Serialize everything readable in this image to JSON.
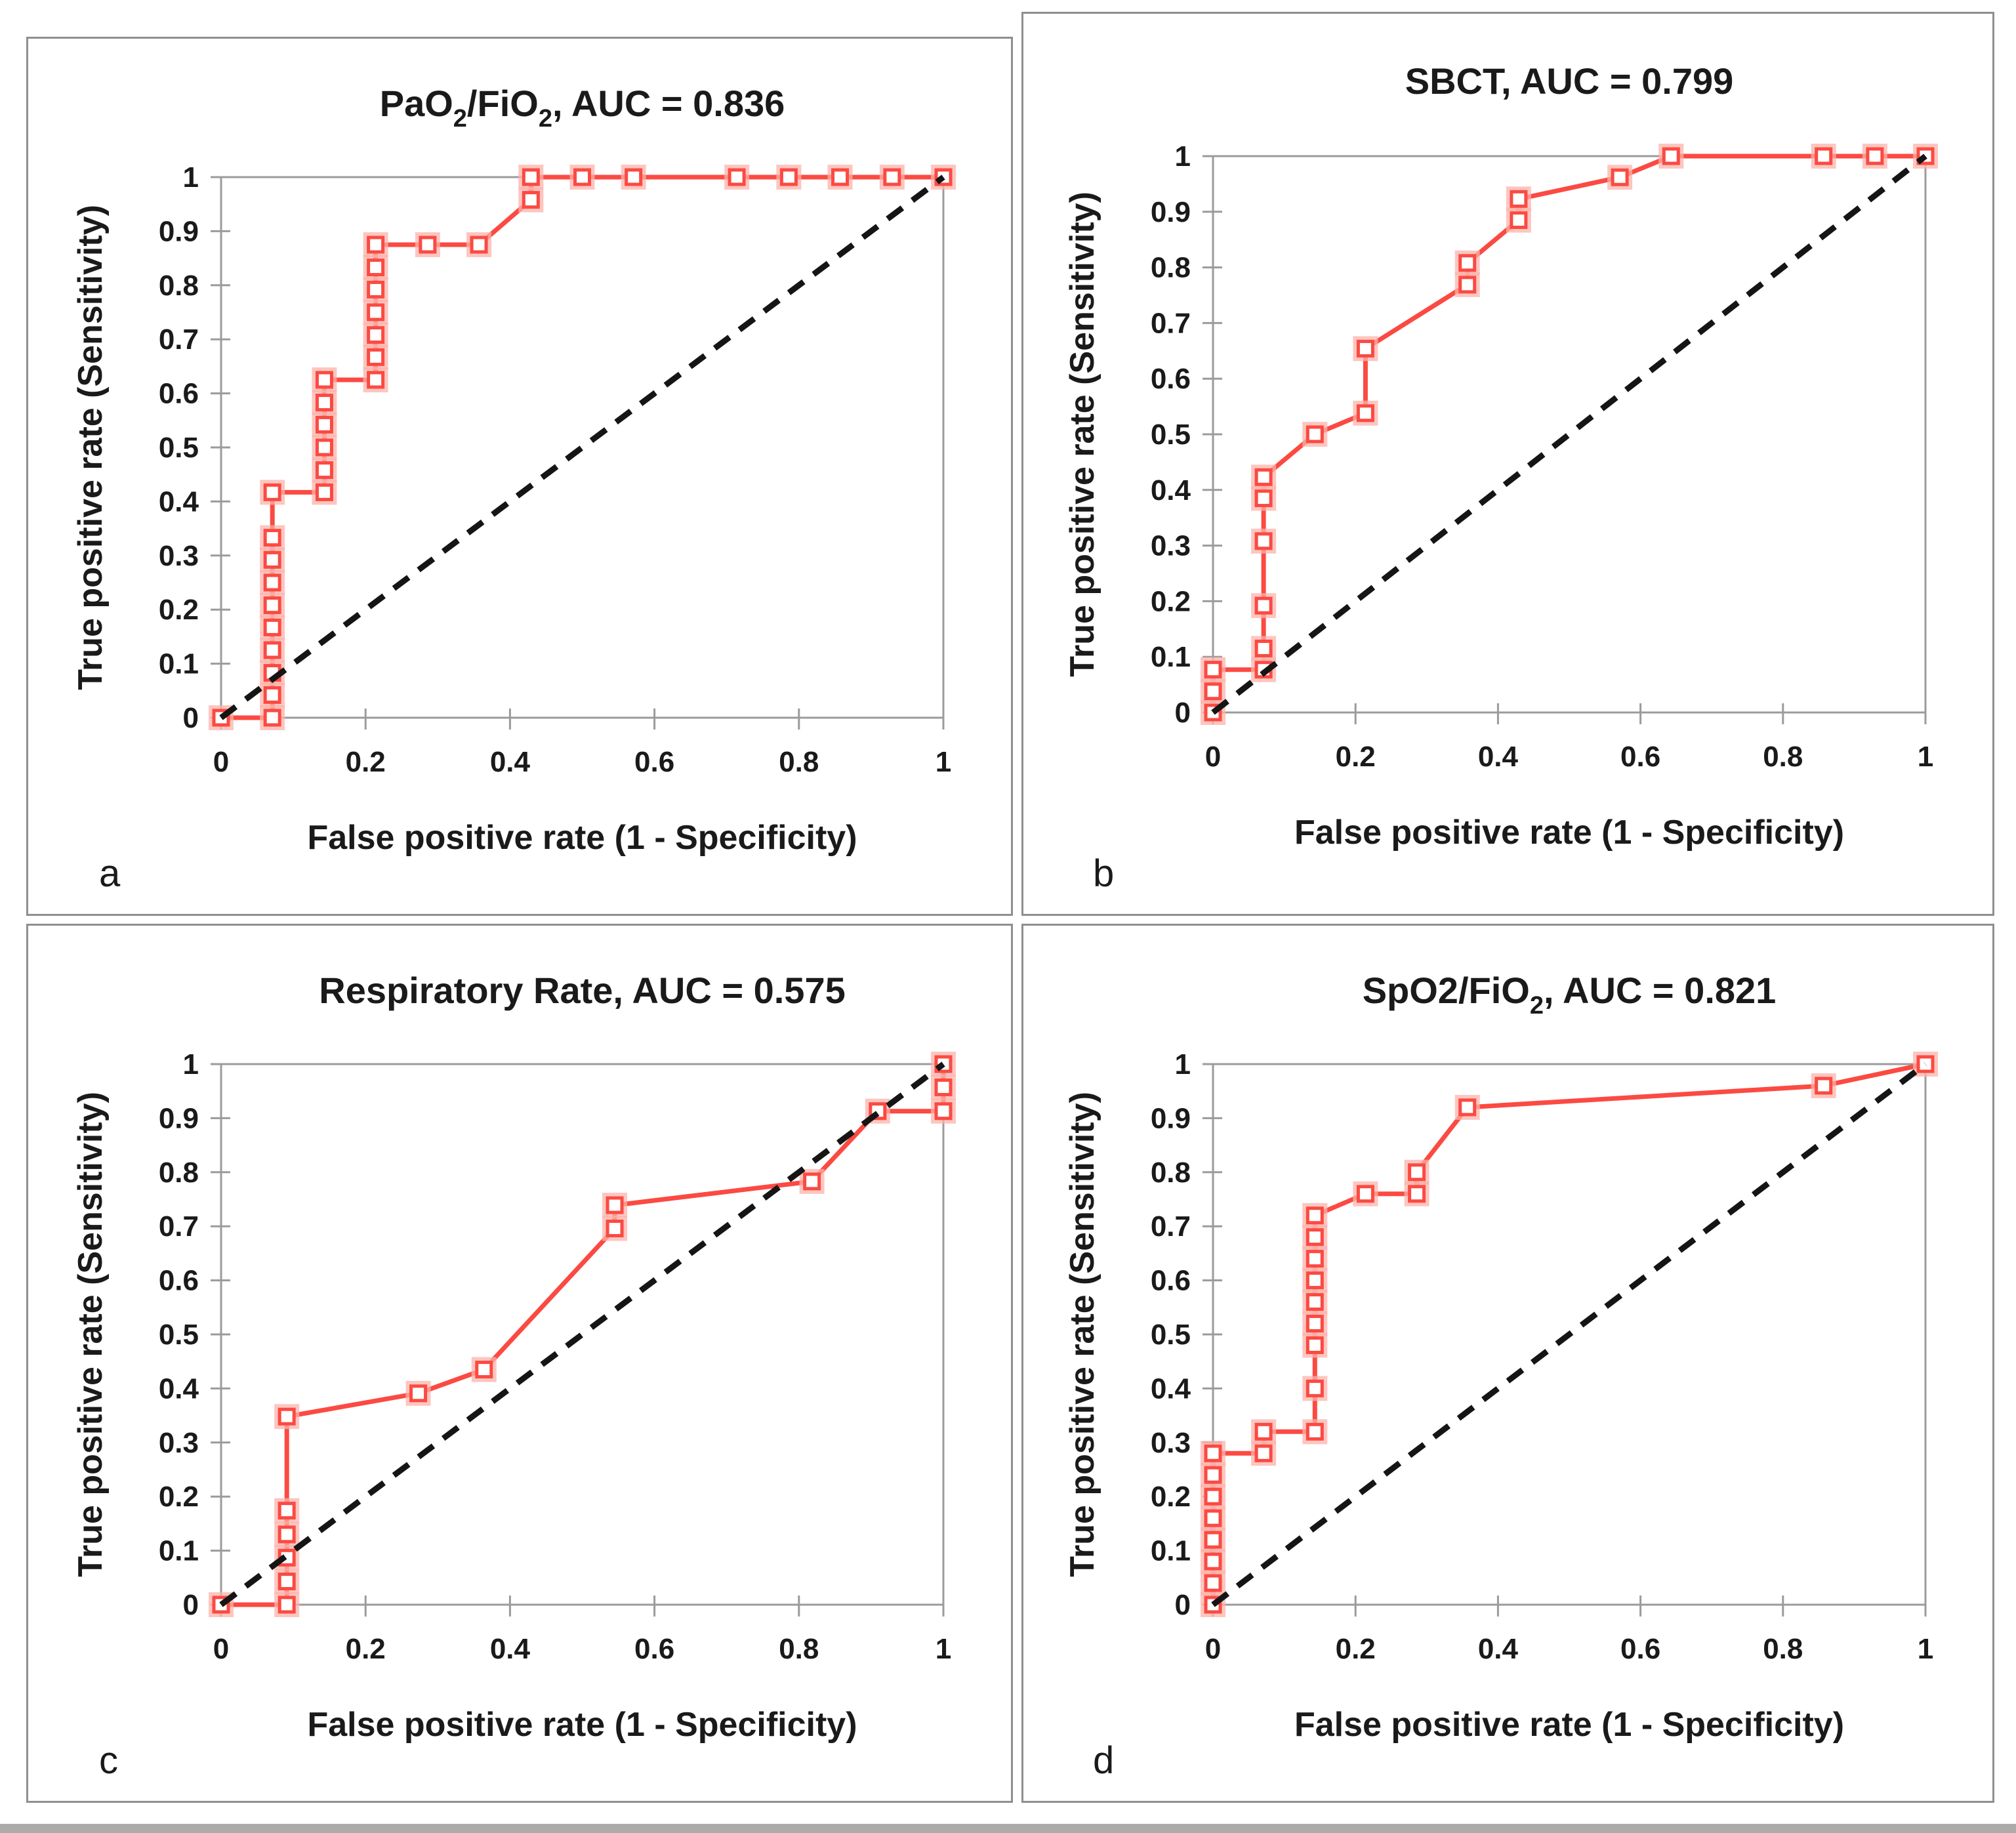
{
  "figure": {
    "background": "#ffffff",
    "panel_border_color": "#8f8f8f",
    "bottom_bar_color": "#ababab"
  },
  "styles": {
    "roc_color": "#fb4a42",
    "roc_marker_fill": "#ffffff",
    "roc_marker_halo": "#fcb3ab",
    "reference_color": "#151515",
    "axis_color": "#9b9b9b",
    "text_color": "#1a1a1a"
  },
  "axes": {
    "xlabel": "False positive rate (1 - Specificity)",
    "ylabel": "True positive rate (Sensitivity)",
    "x_ticks": [
      "0",
      "0.2",
      "0.4",
      "0.6",
      "0.8",
      "1"
    ],
    "y_ticks": [
      "0",
      "0.1",
      "0.2",
      "0.3",
      "0.4",
      "0.5",
      "0.6",
      "0.7",
      "0.8",
      "0.9",
      "1"
    ],
    "xlim": [
      0,
      1
    ],
    "ylim": [
      0,
      1
    ],
    "grid": false,
    "legend": false
  },
  "chart_data": [
    {
      "id": "a",
      "letter": "a",
      "type": "line",
      "title": "PaO2/FiO2, AUC = 0.836",
      "title_segments": [
        {
          "t": "PaO"
        },
        {
          "t": "2",
          "sub": true
        },
        {
          "t": "/FiO"
        },
        {
          "t": "2",
          "sub": true
        },
        {
          "t": ", AUC = 0.836"
        }
      ],
      "auc": 0.836,
      "series": [
        {
          "name": "ROC curve",
          "style": "solid-markers",
          "points": [
            [
              0,
              0
            ],
            [
              0.071,
              0
            ],
            [
              0.071,
              0.042
            ],
            [
              0.071,
              0.083
            ],
            [
              0.071,
              0.125
            ],
            [
              0.071,
              0.167
            ],
            [
              0.071,
              0.208
            ],
            [
              0.071,
              0.25
            ],
            [
              0.071,
              0.292
            ],
            [
              0.071,
              0.333
            ],
            [
              0.071,
              0.417
            ],
            [
              0.143,
              0.417
            ],
            [
              0.143,
              0.458
            ],
            [
              0.143,
              0.5
            ],
            [
              0.143,
              0.542
            ],
            [
              0.143,
              0.583
            ],
            [
              0.143,
              0.625
            ],
            [
              0.214,
              0.625
            ],
            [
              0.214,
              0.667
            ],
            [
              0.214,
              0.708
            ],
            [
              0.214,
              0.75
            ],
            [
              0.214,
              0.792
            ],
            [
              0.214,
              0.833
            ],
            [
              0.214,
              0.875
            ],
            [
              0.286,
              0.875
            ],
            [
              0.357,
              0.875
            ],
            [
              0.429,
              0.958
            ],
            [
              0.429,
              1
            ],
            [
              0.5,
              1
            ],
            [
              0.571,
              1
            ],
            [
              0.714,
              1
            ],
            [
              0.786,
              1
            ],
            [
              0.857,
              1
            ],
            [
              0.929,
              1
            ],
            [
              1,
              1
            ]
          ]
        },
        {
          "name": "Reference (chance) line",
          "style": "dashed",
          "points": [
            [
              0,
              0
            ],
            [
              1,
              1
            ]
          ]
        }
      ]
    },
    {
      "id": "b",
      "letter": "b",
      "type": "line",
      "title": "SBCT, AUC = 0.799",
      "title_segments": [
        {
          "t": "SBCT, AUC = 0.799"
        }
      ],
      "auc": 0.799,
      "series": [
        {
          "name": "ROC curve",
          "style": "solid-markers",
          "points": [
            [
              0,
              0
            ],
            [
              0,
              0.038
            ],
            [
              0,
              0.077
            ],
            [
              0.071,
              0.077
            ],
            [
              0.071,
              0.115
            ],
            [
              0.071,
              0.192
            ],
            [
              0.071,
              0.308
            ],
            [
              0.071,
              0.385
            ],
            [
              0.071,
              0.423
            ],
            [
              0.143,
              0.5
            ],
            [
              0.214,
              0.538
            ],
            [
              0.214,
              0.654
            ],
            [
              0.357,
              0.769
            ],
            [
              0.357,
              0.808
            ],
            [
              0.429,
              0.885
            ],
            [
              0.429,
              0.923
            ],
            [
              0.571,
              0.962
            ],
            [
              0.643,
              1
            ],
            [
              0.857,
              1
            ],
            [
              0.929,
              1
            ],
            [
              1,
              1
            ]
          ]
        },
        {
          "name": "Reference (chance) line",
          "style": "dashed",
          "points": [
            [
              0,
              0
            ],
            [
              1,
              1
            ]
          ]
        }
      ]
    },
    {
      "id": "c",
      "letter": "c",
      "type": "line",
      "title": "Respiratory Rate, AUC = 0.575",
      "title_segments": [
        {
          "t": "Respiratory Rate, AUC = 0.575"
        }
      ],
      "auc": 0.575,
      "series": [
        {
          "name": "ROC curve",
          "style": "solid-markers",
          "points": [
            [
              0,
              0
            ],
            [
              0.091,
              0
            ],
            [
              0.091,
              0.043
            ],
            [
              0.091,
              0.087
            ],
            [
              0.091,
              0.13
            ],
            [
              0.091,
              0.174
            ],
            [
              0.091,
              0.348
            ],
            [
              0.273,
              0.391
            ],
            [
              0.364,
              0.435
            ],
            [
              0.545,
              0.696
            ],
            [
              0.545,
              0.739
            ],
            [
              0.818,
              0.783
            ],
            [
              0.909,
              0.913
            ],
            [
              1,
              0.913
            ],
            [
              1,
              0.957
            ],
            [
              1,
              1
            ]
          ]
        },
        {
          "name": "Reference (chance) line",
          "style": "dashed",
          "points": [
            [
              0,
              0
            ],
            [
              1,
              1
            ]
          ]
        }
      ]
    },
    {
      "id": "d",
      "letter": "d",
      "type": "line",
      "title": "SpO2/FiO2, AUC = 0.821",
      "title_segments": [
        {
          "t": "SpO2/FiO"
        },
        {
          "t": "2",
          "sub": true
        },
        {
          "t": ", AUC = 0.821"
        }
      ],
      "auc": 0.821,
      "series": [
        {
          "name": "ROC curve",
          "style": "solid-markers",
          "points": [
            [
              0,
              0
            ],
            [
              0,
              0.04
            ],
            [
              0,
              0.08
            ],
            [
              0,
              0.12
            ],
            [
              0,
              0.16
            ],
            [
              0,
              0.2
            ],
            [
              0,
              0.24
            ],
            [
              0,
              0.28
            ],
            [
              0.071,
              0.28
            ],
            [
              0.071,
              0.32
            ],
            [
              0.143,
              0.32
            ],
            [
              0.143,
              0.4
            ],
            [
              0.143,
              0.48
            ],
            [
              0.143,
              0.52
            ],
            [
              0.143,
              0.56
            ],
            [
              0.143,
              0.6
            ],
            [
              0.143,
              0.64
            ],
            [
              0.143,
              0.68
            ],
            [
              0.143,
              0.72
            ],
            [
              0.214,
              0.76
            ],
            [
              0.286,
              0.76
            ],
            [
              0.286,
              0.8
            ],
            [
              0.357,
              0.92
            ],
            [
              0.857,
              0.96
            ],
            [
              1,
              1
            ]
          ]
        },
        {
          "name": "Reference (chance) line",
          "style": "dashed",
          "points": [
            [
              0,
              0
            ],
            [
              1,
              1
            ]
          ]
        }
      ]
    }
  ]
}
